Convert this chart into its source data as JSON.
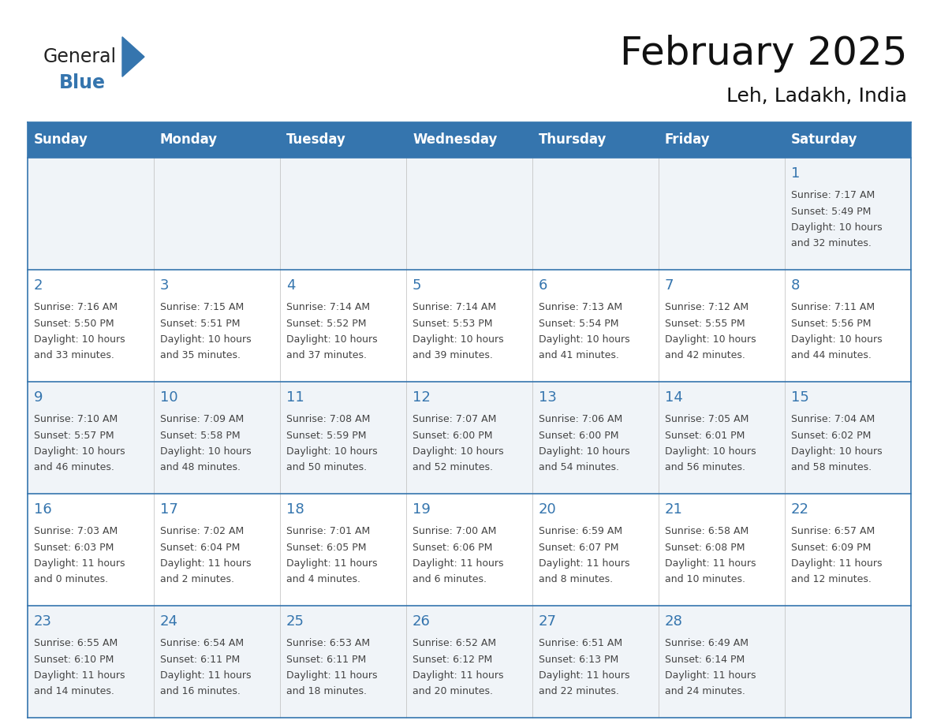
{
  "title": "February 2025",
  "subtitle": "Leh, Ladakh, India",
  "header_bg": "#3575ae",
  "header_text_color": "#ffffff",
  "cell_bg_odd": "#f0f4f8",
  "cell_bg_even": "#ffffff",
  "border_color": "#3575ae",
  "text_color": "#444444",
  "day_number_color": "#3575ae",
  "logo_general_color": "#222222",
  "logo_blue_color": "#3575ae",
  "logo_triangle_color": "#3575ae",
  "days_of_week": [
    "Sunday",
    "Monday",
    "Tuesday",
    "Wednesday",
    "Thursday",
    "Friday",
    "Saturday"
  ],
  "calendar_data": [
    [
      null,
      null,
      null,
      null,
      null,
      null,
      {
        "day": 1,
        "sunrise": "7:17 AM",
        "sunset": "5:49 PM",
        "daylight_line1": "Daylight: 10 hours",
        "daylight_line2": "and 32 minutes."
      }
    ],
    [
      {
        "day": 2,
        "sunrise": "7:16 AM",
        "sunset": "5:50 PM",
        "daylight_line1": "Daylight: 10 hours",
        "daylight_line2": "and 33 minutes."
      },
      {
        "day": 3,
        "sunrise": "7:15 AM",
        "sunset": "5:51 PM",
        "daylight_line1": "Daylight: 10 hours",
        "daylight_line2": "and 35 minutes."
      },
      {
        "day": 4,
        "sunrise": "7:14 AM",
        "sunset": "5:52 PM",
        "daylight_line1": "Daylight: 10 hours",
        "daylight_line2": "and 37 minutes."
      },
      {
        "day": 5,
        "sunrise": "7:14 AM",
        "sunset": "5:53 PM",
        "daylight_line1": "Daylight: 10 hours",
        "daylight_line2": "and 39 minutes."
      },
      {
        "day": 6,
        "sunrise": "7:13 AM",
        "sunset": "5:54 PM",
        "daylight_line1": "Daylight: 10 hours",
        "daylight_line2": "and 41 minutes."
      },
      {
        "day": 7,
        "sunrise": "7:12 AM",
        "sunset": "5:55 PM",
        "daylight_line1": "Daylight: 10 hours",
        "daylight_line2": "and 42 minutes."
      },
      {
        "day": 8,
        "sunrise": "7:11 AM",
        "sunset": "5:56 PM",
        "daylight_line1": "Daylight: 10 hours",
        "daylight_line2": "and 44 minutes."
      }
    ],
    [
      {
        "day": 9,
        "sunrise": "7:10 AM",
        "sunset": "5:57 PM",
        "daylight_line1": "Daylight: 10 hours",
        "daylight_line2": "and 46 minutes."
      },
      {
        "day": 10,
        "sunrise": "7:09 AM",
        "sunset": "5:58 PM",
        "daylight_line1": "Daylight: 10 hours",
        "daylight_line2": "and 48 minutes."
      },
      {
        "day": 11,
        "sunrise": "7:08 AM",
        "sunset": "5:59 PM",
        "daylight_line1": "Daylight: 10 hours",
        "daylight_line2": "and 50 minutes."
      },
      {
        "day": 12,
        "sunrise": "7:07 AM",
        "sunset": "6:00 PM",
        "daylight_line1": "Daylight: 10 hours",
        "daylight_line2": "and 52 minutes."
      },
      {
        "day": 13,
        "sunrise": "7:06 AM",
        "sunset": "6:00 PM",
        "daylight_line1": "Daylight: 10 hours",
        "daylight_line2": "and 54 minutes."
      },
      {
        "day": 14,
        "sunrise": "7:05 AM",
        "sunset": "6:01 PM",
        "daylight_line1": "Daylight: 10 hours",
        "daylight_line2": "and 56 minutes."
      },
      {
        "day": 15,
        "sunrise": "7:04 AM",
        "sunset": "6:02 PM",
        "daylight_line1": "Daylight: 10 hours",
        "daylight_line2": "and 58 minutes."
      }
    ],
    [
      {
        "day": 16,
        "sunrise": "7:03 AM",
        "sunset": "6:03 PM",
        "daylight_line1": "Daylight: 11 hours",
        "daylight_line2": "and 0 minutes."
      },
      {
        "day": 17,
        "sunrise": "7:02 AM",
        "sunset": "6:04 PM",
        "daylight_line1": "Daylight: 11 hours",
        "daylight_line2": "and 2 minutes."
      },
      {
        "day": 18,
        "sunrise": "7:01 AM",
        "sunset": "6:05 PM",
        "daylight_line1": "Daylight: 11 hours",
        "daylight_line2": "and 4 minutes."
      },
      {
        "day": 19,
        "sunrise": "7:00 AM",
        "sunset": "6:06 PM",
        "daylight_line1": "Daylight: 11 hours",
        "daylight_line2": "and 6 minutes."
      },
      {
        "day": 20,
        "sunrise": "6:59 AM",
        "sunset": "6:07 PM",
        "daylight_line1": "Daylight: 11 hours",
        "daylight_line2": "and 8 minutes."
      },
      {
        "day": 21,
        "sunrise": "6:58 AM",
        "sunset": "6:08 PM",
        "daylight_line1": "Daylight: 11 hours",
        "daylight_line2": "and 10 minutes."
      },
      {
        "day": 22,
        "sunrise": "6:57 AM",
        "sunset": "6:09 PM",
        "daylight_line1": "Daylight: 11 hours",
        "daylight_line2": "and 12 minutes."
      }
    ],
    [
      {
        "day": 23,
        "sunrise": "6:55 AM",
        "sunset": "6:10 PM",
        "daylight_line1": "Daylight: 11 hours",
        "daylight_line2": "and 14 minutes."
      },
      {
        "day": 24,
        "sunrise": "6:54 AM",
        "sunset": "6:11 PM",
        "daylight_line1": "Daylight: 11 hours",
        "daylight_line2": "and 16 minutes."
      },
      {
        "day": 25,
        "sunrise": "6:53 AM",
        "sunset": "6:11 PM",
        "daylight_line1": "Daylight: 11 hours",
        "daylight_line2": "and 18 minutes."
      },
      {
        "day": 26,
        "sunrise": "6:52 AM",
        "sunset": "6:12 PM",
        "daylight_line1": "Daylight: 11 hours",
        "daylight_line2": "and 20 minutes."
      },
      {
        "day": 27,
        "sunrise": "6:51 AM",
        "sunset": "6:13 PM",
        "daylight_line1": "Daylight: 11 hours",
        "daylight_line2": "and 22 minutes."
      },
      {
        "day": 28,
        "sunrise": "6:49 AM",
        "sunset": "6:14 PM",
        "daylight_line1": "Daylight: 11 hours",
        "daylight_line2": "and 24 minutes."
      },
      null
    ]
  ],
  "title_fontsize": 36,
  "subtitle_fontsize": 18,
  "header_fontsize": 12,
  "day_num_fontsize": 13,
  "cell_text_fontsize": 9
}
